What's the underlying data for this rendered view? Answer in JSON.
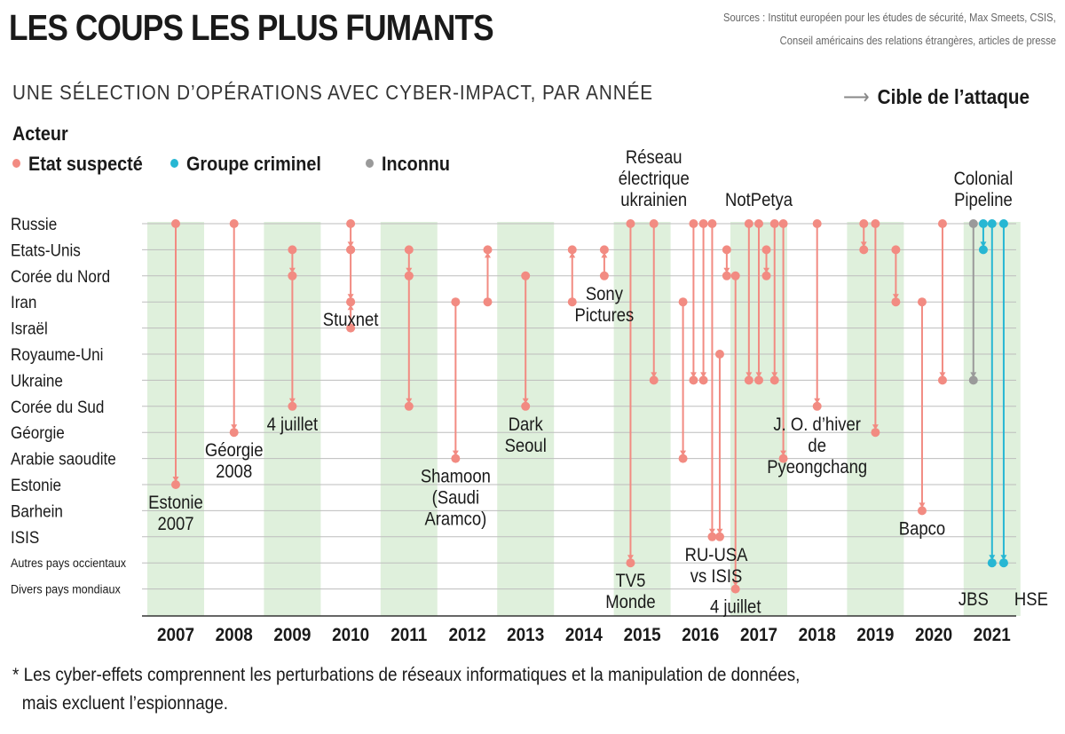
{
  "title": "LES COUPS LES PLUS FUMANTS",
  "sources": [
    "Sources : Institut européen pour les études de sécurité, Max Smeets, CSIS,",
    "Conseil américains des relations étrangères, articles de presse"
  ],
  "subtitle": "UNE SÉLECTION D’OPÉRATIONS AVEC CYBER-IMPACT, PAR ANNÉE",
  "target_legend": {
    "arrow": "⟶",
    "label": "Cible de l’attaque"
  },
  "actor_legend": {
    "title": "Acteur",
    "items": [
      {
        "label": "Etat suspecté",
        "color": "#f28b82"
      },
      {
        "label": "Groupe criminel",
        "color": "#27b7d3"
      },
      {
        "label": "Inconnu",
        "color": "#9a9a9a"
      }
    ]
  },
  "footnote": [
    "* Les cyber-effets comprennent les perturbations de réseaux informatiques et la manipulation de données,",
    "mais excluent l’espionnage."
  ],
  "chart_data": {
    "type": "scatter",
    "countries": [
      "Russie",
      "Etats-Unis",
      "Corée du Nord",
      "Iran",
      "Israël",
      "Royaume-Uni",
      "Ukraine",
      "Corée du Sud",
      "Géorgie",
      "Arabie saoudite",
      "Estonie",
      "Barhein",
      "ISIS",
      "Autres pays occientaux",
      "Divers pays mondiaux"
    ],
    "years": [
      "2007",
      "2008",
      "2009",
      "2010",
      "2011",
      "2012",
      "2013",
      "2014",
      "2015",
      "2016",
      "2017",
      "2018",
      "2019",
      "2020",
      "2021"
    ],
    "shaded_years": [
      "2007",
      "2009",
      "2011",
      "2013",
      "2015",
      "2017",
      "2019",
      "2021"
    ],
    "colors": {
      "state": "#f28b82",
      "criminal": "#27b7d3",
      "unknown": "#9a9a9a",
      "shade": "#dff0dc",
      "grid": "#bdbdbd"
    },
    "operations": [
      {
        "year": 2007.0,
        "actor": "state",
        "from": "Russie",
        "to": "Estonie"
      },
      {
        "year": 2008.0,
        "actor": "state",
        "from": "Russie",
        "to": "Géorgie"
      },
      {
        "year": 2009.0,
        "actor": "state",
        "from": "Etats-Unis",
        "to": "Corée du Nord"
      },
      {
        "year": 2009.0,
        "actor": "state",
        "from": "Corée du Nord",
        "to": "Corée du Sud"
      },
      {
        "year": 2010.0,
        "actor": "state",
        "from": "Russie",
        "to": "Etats-Unis"
      },
      {
        "year": 2010.0,
        "actor": "state",
        "from": "Etats-Unis",
        "to": "Iran"
      },
      {
        "year": 2010.0,
        "actor": "state",
        "from": "Israël",
        "to": "Iran"
      },
      {
        "year": 2011.0,
        "actor": "state",
        "from": "Etats-Unis",
        "to": "Corée du Nord"
      },
      {
        "year": 2011.0,
        "actor": "state",
        "from": "Corée du Nord",
        "to": "Corée du Sud"
      },
      {
        "year": 2011.8,
        "actor": "state",
        "from": "Iran",
        "to": "Arabie saoudite"
      },
      {
        "year": 2012.35,
        "actor": "state",
        "from": "Iran",
        "to": "Etats-Unis"
      },
      {
        "year": 2013.0,
        "actor": "state",
        "from": "Corée du Nord",
        "to": "Corée du Sud"
      },
      {
        "year": 2013.8,
        "actor": "state",
        "from": "Iran",
        "to": "Etats-Unis"
      },
      {
        "year": 2014.35,
        "actor": "state",
        "from": "Corée du Nord",
        "to": "Etats-Unis"
      },
      {
        "year": 2014.8,
        "actor": "state",
        "from": "Russie",
        "to": "Autres pays occientaux"
      },
      {
        "year": 2015.2,
        "actor": "state",
        "from": "Russie",
        "to": "Ukraine"
      },
      {
        "year": 2015.7,
        "actor": "state",
        "from": "Iran",
        "to": "Arabie saoudite"
      },
      {
        "year": 2015.88,
        "actor": "state",
        "from": "Russie",
        "to": "Ukraine"
      },
      {
        "year": 2016.05,
        "actor": "state",
        "from": "Russie",
        "to": "Ukraine"
      },
      {
        "year": 2016.2,
        "actor": "state",
        "from": "Russie",
        "to": "ISIS"
      },
      {
        "year": 2016.33,
        "actor": "state",
        "from": "Royaume-Uni",
        "to": "ISIS"
      },
      {
        "year": 2016.45,
        "actor": "state",
        "from": "Etats-Unis",
        "to": "Corée du Nord"
      },
      {
        "year": 2016.6,
        "actor": "state",
        "from": "Corée du Nord",
        "to": "Divers pays mondiaux"
      },
      {
        "year": 2016.83,
        "actor": "state",
        "from": "Russie",
        "to": "Ukraine"
      },
      {
        "year": 2017.0,
        "actor": "state",
        "from": "Russie",
        "to": "Ukraine"
      },
      {
        "year": 2017.13,
        "actor": "state",
        "from": "Etats-Unis",
        "to": "Corée du Nord"
      },
      {
        "year": 2017.27,
        "actor": "state",
        "from": "Russie",
        "to": "Ukraine"
      },
      {
        "year": 2017.42,
        "actor": "state",
        "from": "Russie",
        "to": "Arabie saoudite"
      },
      {
        "year": 2018.0,
        "actor": "state",
        "from": "Russie",
        "to": "Corée du Sud"
      },
      {
        "year": 2018.8,
        "actor": "state",
        "from": "Russie",
        "to": "Etats-Unis"
      },
      {
        "year": 2019.0,
        "actor": "state",
        "from": "Russie",
        "to": "Géorgie"
      },
      {
        "year": 2019.35,
        "actor": "state",
        "from": "Etats-Unis",
        "to": "Iran"
      },
      {
        "year": 2019.8,
        "actor": "state",
        "from": "Iran",
        "to": "Barhein"
      },
      {
        "year": 2020.15,
        "actor": "state",
        "from": "Russie",
        "to": "Ukraine"
      },
      {
        "year": 2020.68,
        "actor": "unknown",
        "from": "Russie",
        "to": "Ukraine"
      },
      {
        "year": 2020.85,
        "actor": "criminal",
        "from": "Russie",
        "to": "Etats-Unis"
      },
      {
        "year": 2021.0,
        "actor": "criminal",
        "from": "Russie",
        "to": "Autres pays occientaux"
      },
      {
        "year": 2021.2,
        "actor": "criminal",
        "from": "Russie",
        "to": "Autres pays occientaux"
      }
    ],
    "annotations": [
      {
        "text": [
          "Estonie",
          "2007"
        ],
        "year": 2007.0,
        "country": "Estonie",
        "place": "below"
      },
      {
        "text": [
          "Géorgie",
          "2008"
        ],
        "year": 2008.0,
        "country": "Géorgie",
        "place": "below"
      },
      {
        "text": [
          "4 juillet"
        ],
        "year": 2009.0,
        "country": "Corée du Sud",
        "place": "below"
      },
      {
        "text": [
          "Stuxnet"
        ],
        "year": 2010.0,
        "country": "Iran",
        "place": "below"
      },
      {
        "text": [
          "Shamoon",
          "(Saudi",
          "Aramco)"
        ],
        "year": 2011.8,
        "country": "Arabie saoudite",
        "place": "below"
      },
      {
        "text": [
          "Dark",
          "Seoul"
        ],
        "year": 2013.0,
        "country": "Corée du Sud",
        "place": "below"
      },
      {
        "text": [
          "Sony",
          "Pictures"
        ],
        "year": 2014.35,
        "country": "Corée du Nord",
        "place": "below"
      },
      {
        "text": [
          "TV5",
          "Monde"
        ],
        "year": 2014.8,
        "country": "Autres pays occientaux",
        "place": "below"
      },
      {
        "text": [
          "Réseau",
          "électrique",
          "ukrainien"
        ],
        "year": 2015.2,
        "country": "Russie",
        "place": "above"
      },
      {
        "text": [
          "RU-USA",
          "vs ISIS"
        ],
        "year": 2016.27,
        "country": "ISIS",
        "place": "below"
      },
      {
        "text": [
          "4 juillet"
        ],
        "year": 2016.6,
        "country": "Divers pays mondiaux",
        "place": "below"
      },
      {
        "text": [
          "NotPetya"
        ],
        "year": 2017.0,
        "country": "Russie",
        "place": "above"
      },
      {
        "text": [
          "J. O. d’hiver",
          "de",
          "Pyeongchang"
        ],
        "year": 2018.0,
        "country": "Corée du Sud",
        "place": "below"
      },
      {
        "text": [
          "Bapco"
        ],
        "year": 2019.8,
        "country": "Barhein",
        "place": "below"
      },
      {
        "text": [
          "Colonial",
          "Pipeline"
        ],
        "year": 2020.85,
        "country": "Russie",
        "place": "above"
      },
      {
        "text": [
          "JBS"
        ],
        "year": 2021.0,
        "country": "Autres pays occientaux",
        "place": "below-left"
      },
      {
        "text": [
          "HSE"
        ],
        "year": 2021.2,
        "country": "Autres pays occientaux",
        "place": "below-right"
      }
    ]
  }
}
